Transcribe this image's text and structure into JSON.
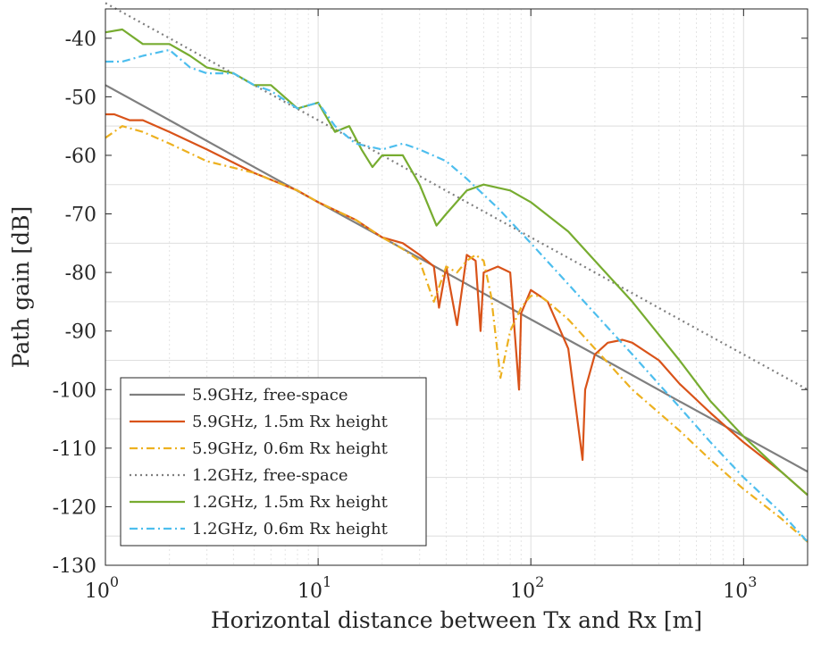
{
  "chart_data": {
    "type": "line",
    "title": "",
    "xlabel": "Horizontal distance between Tx and Rx [m]",
    "ylabel": "Path gain [dB]",
    "xscale": "log",
    "xlim": [
      1,
      2000
    ],
    "ylim": [
      -130,
      -35
    ],
    "grid": "on",
    "legend_position": "bottom-left",
    "y_ticks": [
      "-40",
      "-50",
      "-60",
      "-70",
      "-80",
      "-90",
      "-100",
      "-110",
      "-120",
      "-130"
    ],
    "x_ticks": [
      {
        "base": "10",
        "exp": "0"
      },
      {
        "base": "10",
        "exp": "1"
      },
      {
        "base": "10",
        "exp": "2"
      },
      {
        "base": "10",
        "exp": "3"
      }
    ],
    "series": [
      {
        "name": "5.9GHz, free-space",
        "color": "#7f7f7f",
        "style": "solid",
        "x": [
          1,
          2,
          5,
          10,
          20,
          50,
          100,
          200,
          500,
          1000,
          2000
        ],
        "y": [
          -48,
          -54,
          -62,
          -68,
          -74,
          -82,
          -88,
          -94,
          -102,
          -108,
          -114
        ]
      },
      {
        "name": "5.9GHz, 1.5m Rx height",
        "color": "#d95319",
        "style": "solid",
        "x": [
          1,
          1.1,
          1.3,
          1.5,
          2,
          3,
          5,
          8,
          10,
          15,
          20,
          25,
          30,
          35,
          37,
          40,
          45,
          50,
          55,
          58,
          60,
          70,
          80,
          88,
          90,
          100,
          110,
          120,
          150,
          175,
          180,
          200,
          230,
          270,
          300,
          400,
          500,
          700,
          1000,
          1500,
          2000
        ],
        "y": [
          -53,
          -53,
          -54,
          -54,
          -56,
          -59,
          -63,
          -66,
          -68,
          -71,
          -74,
          -75,
          -77,
          -79,
          -86,
          -79,
          -89,
          -77,
          -78,
          -90,
          -80,
          -79,
          -80,
          -100,
          -87,
          -83,
          -84,
          -85,
          -93,
          -112,
          -100,
          -94,
          -92,
          -91.5,
          -92,
          -95,
          -99,
          -104,
          -109,
          -114,
          -118
        ]
      },
      {
        "name": "5.9GHz, 0.6m Rx height",
        "color": "#edb120",
        "style": "dashdot",
        "x": [
          1,
          1.2,
          1.5,
          2,
          3,
          5,
          8,
          10,
          15,
          20,
          25,
          30,
          35,
          40,
          45,
          50,
          55,
          60,
          65,
          72,
          80,
          90,
          100,
          110,
          120,
          150,
          200,
          300,
          500,
          700,
          1000,
          1500,
          2000
        ],
        "y": [
          -57,
          -55,
          -56,
          -58,
          -61,
          -63,
          -66,
          -68,
          -71,
          -74,
          -76,
          -78,
          -85,
          -79,
          -80,
          -78,
          -77,
          -78,
          -84,
          -98,
          -90,
          -86,
          -84,
          -84,
          -85,
          -88,
          -93,
          -100,
          -107,
          -112,
          -117,
          -122,
          -126
        ]
      },
      {
        "name": "1.2GHz, free-space",
        "color": "#7f7f7f",
        "style": "dotted",
        "x": [
          1,
          2,
          5,
          10,
          20,
          50,
          100,
          200,
          500,
          1000,
          2000
        ],
        "y": [
          -34,
          -40,
          -48,
          -54,
          -60,
          -68,
          -74,
          -80,
          -88,
          -94,
          -100
        ]
      },
      {
        "name": "1.2GHz, 1.5m Rx height",
        "color": "#77ac30",
        "style": "solid",
        "x": [
          1,
          1.2,
          1.5,
          2,
          2.5,
          3,
          4,
          5,
          6,
          8,
          10,
          12,
          14,
          16,
          18,
          20,
          25,
          30,
          36,
          40,
          50,
          60,
          80,
          100,
          150,
          200,
          300,
          500,
          700,
          1000,
          1500,
          2000
        ],
        "y": [
          -39,
          -38.5,
          -41,
          -41,
          -43,
          -45,
          -46,
          -48,
          -48,
          -52,
          -51,
          -56,
          -55,
          -59,
          -62,
          -60,
          -60,
          -65,
          -72,
          -70,
          -66,
          -65,
          -66,
          -68,
          -73,
          -78,
          -85,
          -95,
          -102,
          -108,
          -114,
          -118
        ]
      },
      {
        "name": "1.2GHz, 0.6m Rx height",
        "color": "#4dbeee",
        "style": "dashdot",
        "x": [
          1,
          1.2,
          1.5,
          2,
          2.5,
          3,
          4,
          5,
          6,
          8,
          10,
          12,
          15,
          20,
          25,
          30,
          40,
          50,
          70,
          100,
          150,
          200,
          300,
          500,
          700,
          1000,
          1500,
          2000
        ],
        "y": [
          -44,
          -44,
          -43,
          -42,
          -45,
          -46,
          -46,
          -48,
          -49,
          -52,
          -51,
          -55,
          -58,
          -59,
          -58,
          -59,
          -61,
          -64,
          -69,
          -75,
          -82,
          -87,
          -94,
          -103,
          -109,
          -115,
          -121,
          -126
        ]
      }
    ]
  }
}
